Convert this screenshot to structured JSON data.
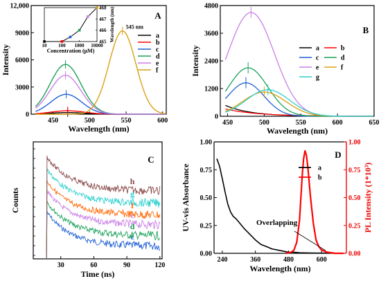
{
  "chart_data": [
    {
      "panel": "A",
      "type": "line",
      "xlabel": "Wavelength (nm)",
      "ylabel": "Intensity",
      "xlim": [
        420,
        605
      ],
      "ylim": [
        0,
        12000
      ],
      "xticks": [
        450,
        500,
        550,
        600
      ],
      "yticks": [
        0,
        3000,
        6000,
        9000,
        12000
      ],
      "ytick_labels": [
        "0",
        "3000",
        "6000",
        "9000",
        "12,000"
      ],
      "annotation": "545 nm",
      "legend_position": "top-right",
      "series": [
        {
          "name": "a",
          "color": "#000000",
          "peak_x": 470,
          "peak_y": 180,
          "width": 32
        },
        {
          "name": "b",
          "color": "#ff0000",
          "peak_x": 470,
          "peak_y": 380,
          "width": 32
        },
        {
          "name": "c",
          "color": "#1f5fd6",
          "peak_x": 468,
          "peak_y": 2200,
          "width": 30
        },
        {
          "name": "d",
          "color": "#18a058",
          "peak_x": 467,
          "peak_y": 5500,
          "width": 30
        },
        {
          "name": "e",
          "color": "#c97ee6",
          "peak_x": 467,
          "peak_y": 4300,
          "width": 30
        },
        {
          "name": "f",
          "color": "#d9a011",
          "peak_x": 545,
          "peak_y": 9200,
          "width": 26
        }
      ],
      "inset": {
        "xlabel": "Concentration (μM)",
        "ylabel": "Wavelength (nm)",
        "xticks": [
          10,
          100,
          1000,
          10000
        ],
        "yticks": [
          465,
          466,
          467,
          468
        ],
        "log_x": true,
        "x": [
          10,
          100,
          300,
          1000,
          3000,
          10000
        ],
        "y": [
          465.0,
          465.0,
          465.4,
          466.0,
          467.2,
          468.0
        ]
      }
    },
    {
      "panel": "B",
      "type": "line",
      "xlabel": "Wavelength (nm)",
      "ylabel": "Intensity",
      "xlim": [
        440,
        650
      ],
      "ylim": [
        0,
        4800
      ],
      "xticks": [
        450,
        500,
        550,
        600,
        650
      ],
      "yticks": [
        0,
        1200,
        2400,
        3600,
        4800
      ],
      "legend_position": "top-right",
      "series": [
        {
          "name": "a",
          "color": "#000000",
          "peak_x": 445,
          "peak_y": 500,
          "width": 35
        },
        {
          "name": "b",
          "color": "#ff0000",
          "peak_x": 445,
          "peak_y": 330,
          "width": 45
        },
        {
          "name": "c",
          "color": "#1f5fd6",
          "peak_x": 475,
          "peak_y": 1450,
          "width": 35
        },
        {
          "name": "d",
          "color": "#18a058",
          "peak_x": 478,
          "peak_y": 2100,
          "width": 38
        },
        {
          "name": "e",
          "color": "#c97ee6",
          "peak_x": 482,
          "peak_y": 4500,
          "width": 45
        },
        {
          "name": "f",
          "color": "#d9a011",
          "peak_x": 500,
          "peak_y": 1050,
          "width": 42
        },
        {
          "name": "g",
          "color": "#2ad0cf",
          "peak_x": 505,
          "peak_y": 1150,
          "width": 42
        }
      ]
    },
    {
      "panel": "C",
      "type": "line",
      "xlabel": "Time (ns)",
      "ylabel": "Counts",
      "xlim": [
        5,
        122
      ],
      "xticks": [
        30,
        60,
        90,
        120
      ],
      "series": [
        {
          "name": "c",
          "color": "#1f5fd6"
        },
        {
          "name": "d",
          "color": "#18a058"
        },
        {
          "name": "e",
          "color": "#c97ee6"
        },
        {
          "name": "f",
          "color": "#ff6600"
        },
        {
          "name": "g",
          "color": "#2ad0cf"
        },
        {
          "name": "h",
          "color": "#8b4a4a"
        }
      ]
    },
    {
      "panel": "D",
      "type": "line",
      "xlabel": "Wavelength (nm)",
      "ylabel": "UV-vis Absorbance",
      "y2label": "PL Intensity (1*10³)",
      "xlim": [
        210,
        690
      ],
      "ylim": [
        0,
        1.0
      ],
      "y2lim": [
        0,
        1.0
      ],
      "xticks": [
        240,
        360,
        480,
        600
      ],
      "yticks": [
        0.0,
        0.25,
        0.5,
        0.75,
        1.0
      ],
      "ytick_labels": [
        "0.00",
        "0.25",
        "0.50",
        "0.75",
        "1.00"
      ],
      "annotation": "Overlapping",
      "legend_position": "top-right",
      "series": [
        {
          "name": "a",
          "color": "#000000",
          "x": [
            220,
            230,
            240,
            250,
            260,
            270,
            280,
            290,
            300,
            320,
            340,
            360,
            380,
            400,
            420,
            440,
            460,
            480,
            500,
            520,
            560,
            600,
            650,
            680
          ],
          "y": [
            0.85,
            0.78,
            0.67,
            0.55,
            0.44,
            0.37,
            0.33,
            0.31,
            0.28,
            0.22,
            0.17,
            0.12,
            0.08,
            0.06,
            0.04,
            0.03,
            0.02,
            0.01,
            0.01,
            0.005,
            0.003,
            0.002,
            0.001,
            0.001
          ]
        },
        {
          "name": "b",
          "color": "#ff0000",
          "axis": "right",
          "x": [
            470,
            490,
            500,
            510,
            520,
            530,
            535,
            540,
            545,
            550,
            560,
            570,
            580,
            590,
            600,
            620,
            650,
            680
          ],
          "y": [
            0.0,
            0.01,
            0.03,
            0.1,
            0.3,
            0.7,
            0.85,
            0.92,
            0.88,
            0.78,
            0.5,
            0.27,
            0.12,
            0.06,
            0.03,
            0.01,
            0.0,
            0.0
          ]
        }
      ]
    }
  ]
}
